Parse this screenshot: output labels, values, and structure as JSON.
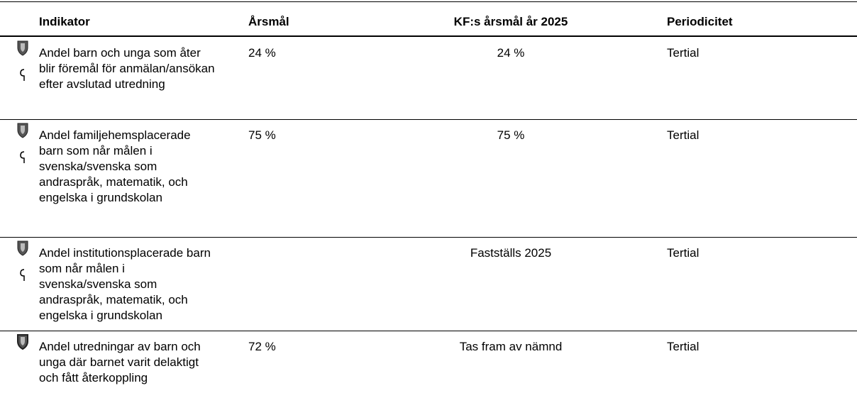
{
  "table": {
    "header": [
      "Indikator",
      "Årsmål",
      "KF:s årsmål år 2025",
      "Periodicitet"
    ],
    "rows": [
      {
        "indikator": "Andel barn och unga som åter blir föremål för anmälan/ansökan efter avslutad utredning",
        "arsmal": "24 %",
        "kf": "24 %",
        "period": "Tertial"
      },
      {
        "indikator": "Andel familjehemsplacerade barn som når målen i svenska/svenska som andraspråk, matematik, och engelska i grundskolan",
        "arsmal": "75 %",
        "kf": "75 %",
        "period": "Tertial"
      },
      {
        "indikator": "Andel institutionsplacerade barn som når målen i svenska/svenska som andraspråk, matematik, och engelska i grundskolan",
        "kf": "Fastställs 2025",
        "period": "Tertial"
      },
      {
        "indikator": "Andel utredningar av barn och unga där barnet varit delaktigt och fått återkoppling",
        "arsmal": "72 %",
        "kf": "Tas fram av nämnd",
        "period": "Tertial"
      }
    ]
  }
}
